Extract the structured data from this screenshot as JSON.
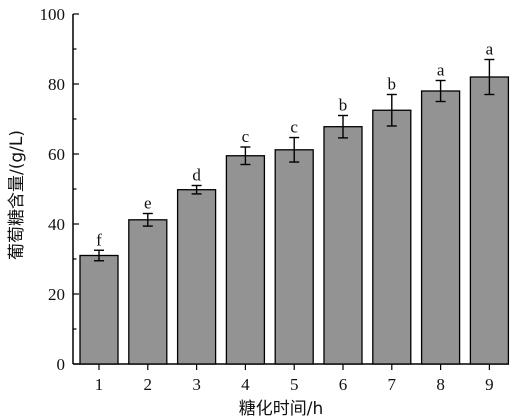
{
  "chart_data": {
    "type": "bar",
    "xlabel": "糖化时间/h",
    "ylabel": "葡萄糖含量/(g/L)",
    "categories": [
      "1",
      "2",
      "3",
      "4",
      "5",
      "6",
      "7",
      "8",
      "9"
    ],
    "values": [
      31.0,
      41.2,
      49.8,
      59.5,
      61.2,
      67.8,
      72.5,
      78.0,
      82.0
    ],
    "errors": [
      1.5,
      1.8,
      1.2,
      2.5,
      3.5,
      3.2,
      4.5,
      3.0,
      5.0
    ],
    "significance_letters": [
      "f",
      "e",
      "d",
      "c",
      "c",
      "b",
      "b",
      "a",
      "a"
    ],
    "ylim": [
      0,
      100
    ],
    "yticks": [
      0,
      20,
      40,
      60,
      80,
      100
    ],
    "grid": false,
    "bar_color": "#939393"
  }
}
